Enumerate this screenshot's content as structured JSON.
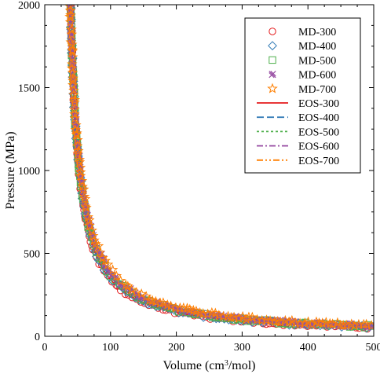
{
  "chart_data": {
    "type": "scatter",
    "title": "",
    "xlabel": "Volume (cm",
    "xlabel_sup": "3",
    "xlabel_tail": "/mol)",
    "ylabel": "Pressure (MPa)",
    "xlim": [
      0,
      500
    ],
    "ylim": [
      0,
      2000
    ],
    "x_ticks": [
      0,
      100,
      200,
      300,
      400,
      500
    ],
    "y_ticks": [
      0,
      500,
      1000,
      1500,
      2000
    ],
    "grid": false,
    "legend_position": "top-right",
    "markers": [
      {
        "name": "MD-300",
        "color": "#e41a1c",
        "marker": "circle",
        "scale_k": 25000,
        "v0": 27
      },
      {
        "name": "MD-400",
        "color": "#377eb8",
        "marker": "diamond",
        "scale_k": 26500,
        "v0": 26
      },
      {
        "name": "MD-500",
        "color": "#4daf4a",
        "marker": "square",
        "scale_k": 28000,
        "v0": 25
      },
      {
        "name": "MD-600",
        "color": "#984ea3",
        "marker": "x",
        "scale_k": 29500,
        "v0": 24
      },
      {
        "name": "MD-700",
        "color": "#ff7f00",
        "marker": "star",
        "scale_k": 31000,
        "v0": 23
      }
    ],
    "lines": [
      {
        "name": "EOS-300",
        "color": "#e41a1c",
        "dash": "",
        "scale_k": 25000,
        "v0": 27
      },
      {
        "name": "EOS-400",
        "color": "#377eb8",
        "dash": "9,4",
        "scale_k": 26500,
        "v0": 26
      },
      {
        "name": "EOS-500",
        "color": "#4daf4a",
        "dash": "3,3",
        "scale_k": 28000,
        "v0": 25
      },
      {
        "name": "EOS-600",
        "color": "#984ea3",
        "dash": "8,3,2,3",
        "scale_k": 29500,
        "v0": 24
      },
      {
        "name": "EOS-700",
        "color": "#ff7f00",
        "dash": "8,3,2,3,2,3",
        "scale_k": 31000,
        "v0": 23
      }
    ]
  }
}
